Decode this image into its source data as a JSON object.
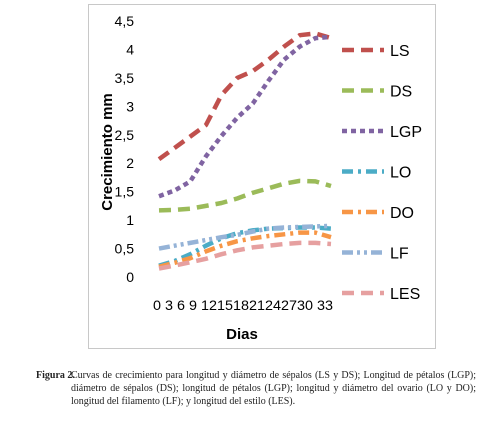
{
  "chart_data": {
    "type": "line",
    "title": "",
    "xlabel": "Dias",
    "ylabel": "Crecimiento mm",
    "categories": [
      "0",
      "3",
      "6",
      "9",
      "12",
      "15",
      "18",
      "21",
      "24",
      "27",
      "30",
      "33"
    ],
    "x_tick_text": "0 3 6 9 12151821242730 33",
    "ylim": [
      0,
      4.5
    ],
    "yticks": [
      "0",
      "0,5",
      "1",
      "1,5",
      "2",
      "2,5",
      "3",
      "3,5",
      "4",
      "4,5"
    ],
    "grid": false,
    "legend_position": "right",
    "series": [
      {
        "name": "LS",
        "color": "#c0504d",
        "dash": "dash",
        "values": [
          2.07,
          2.27,
          2.47,
          2.67,
          3.2,
          3.5,
          3.62,
          3.82,
          4.05,
          4.25,
          4.28,
          4.2
        ]
      },
      {
        "name": "DS",
        "color": "#9bbb59",
        "dash": "dash",
        "values": [
          1.17,
          1.18,
          1.2,
          1.25,
          1.3,
          1.38,
          1.48,
          1.56,
          1.64,
          1.69,
          1.68,
          1.6
        ]
      },
      {
        "name": "LGP",
        "color": "#8064a2",
        "dash": "dot",
        "values": [
          1.42,
          1.52,
          1.68,
          2.12,
          2.48,
          2.8,
          3.05,
          3.45,
          3.82,
          4.05,
          4.2,
          4.22
        ]
      },
      {
        "name": "LO",
        "color": "#4bacc6",
        "dash": "dashdot",
        "values": [
          0.2,
          0.28,
          0.4,
          0.55,
          0.68,
          0.77,
          0.82,
          0.85,
          0.86,
          0.87,
          0.87,
          0.85
        ]
      },
      {
        "name": "DO",
        "color": "#f79646",
        "dash": "dashdot",
        "values": [
          0.18,
          0.25,
          0.33,
          0.45,
          0.55,
          0.63,
          0.68,
          0.72,
          0.75,
          0.78,
          0.78,
          0.7
        ]
      },
      {
        "name": "LF",
        "color": "#95b3d7",
        "dash": "dashdotdot",
        "values": [
          0.5,
          0.55,
          0.6,
          0.65,
          0.7,
          0.74,
          0.8,
          0.85,
          0.87,
          0.88,
          0.89,
          0.9
        ]
      },
      {
        "name": "LES",
        "color": "#e6a0a0",
        "dash": "dash",
        "values": [
          0.15,
          0.2,
          0.26,
          0.32,
          0.4,
          0.47,
          0.52,
          0.55,
          0.58,
          0.6,
          0.6,
          0.58
        ]
      }
    ]
  },
  "caption": {
    "label": "Figura 2.",
    "text": "Curvas de crecimiento para longitud y diámetro de sépalos (LS y DS); Longitud de pétalos (LGP); diámetro de sépalos (DS); longitud de pétalos (LGP); longitud y diámetro del ovario (LO y DO); longitud del filamento (LF); y longitud del estilo (LES)."
  }
}
